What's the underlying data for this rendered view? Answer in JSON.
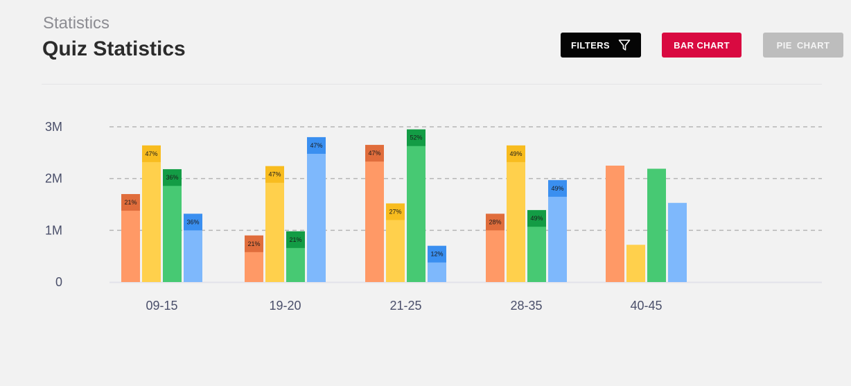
{
  "header": {
    "breadcrumb": "Statistics",
    "title": "Quiz Statistics"
  },
  "toolbar": {
    "filters_label": "FILTERS",
    "bar_chart_label": "BAR CHART",
    "pie_chart_label": "PIE CHART"
  },
  "colors": {
    "filters_bg": "#050505",
    "bar_chart_bg": "#d90a41",
    "pie_chart_bg": "#bdbdbd"
  },
  "chart_data": {
    "type": "bar",
    "categories": [
      "09-15",
      "19-20",
      "21-25",
      "28-35",
      "40-45"
    ],
    "yticks": [
      {
        "value": 0,
        "label": "0"
      },
      {
        "value": 1000000,
        "label": "1M"
      },
      {
        "value": 2000000,
        "label": "2M"
      },
      {
        "value": 3000000,
        "label": "3M"
      }
    ],
    "ylim": [
      0,
      3000000
    ],
    "grid": true,
    "series": [
      {
        "color": "#ff9966",
        "band_color": "#e06d3c",
        "values": [
          1700000,
          900000,
          2650000,
          1320000,
          2250000
        ],
        "labels": [
          "21%",
          "21%",
          "47%",
          "28%",
          ""
        ]
      },
      {
        "color": "#ffd04c",
        "band_color": "#f8bc1f",
        "values": [
          2640000,
          2240000,
          1520000,
          2640000,
          720000
        ],
        "labels": [
          "47%",
          "47%",
          "27%",
          "49%",
          ""
        ]
      },
      {
        "color": "#47c973",
        "band_color": "#139c45",
        "values": [
          2180000,
          980000,
          2950000,
          1390000,
          2190000
        ],
        "labels": [
          "36%",
          "21%",
          "52%",
          "49%",
          ""
        ]
      },
      {
        "color": "#7eb8fc",
        "band_color": "#3a8ff0",
        "values": [
          1320000,
          2800000,
          700000,
          1970000,
          1530000
        ],
        "labels": [
          "36%",
          "47%",
          "12%",
          "49%",
          ""
        ]
      }
    ]
  }
}
